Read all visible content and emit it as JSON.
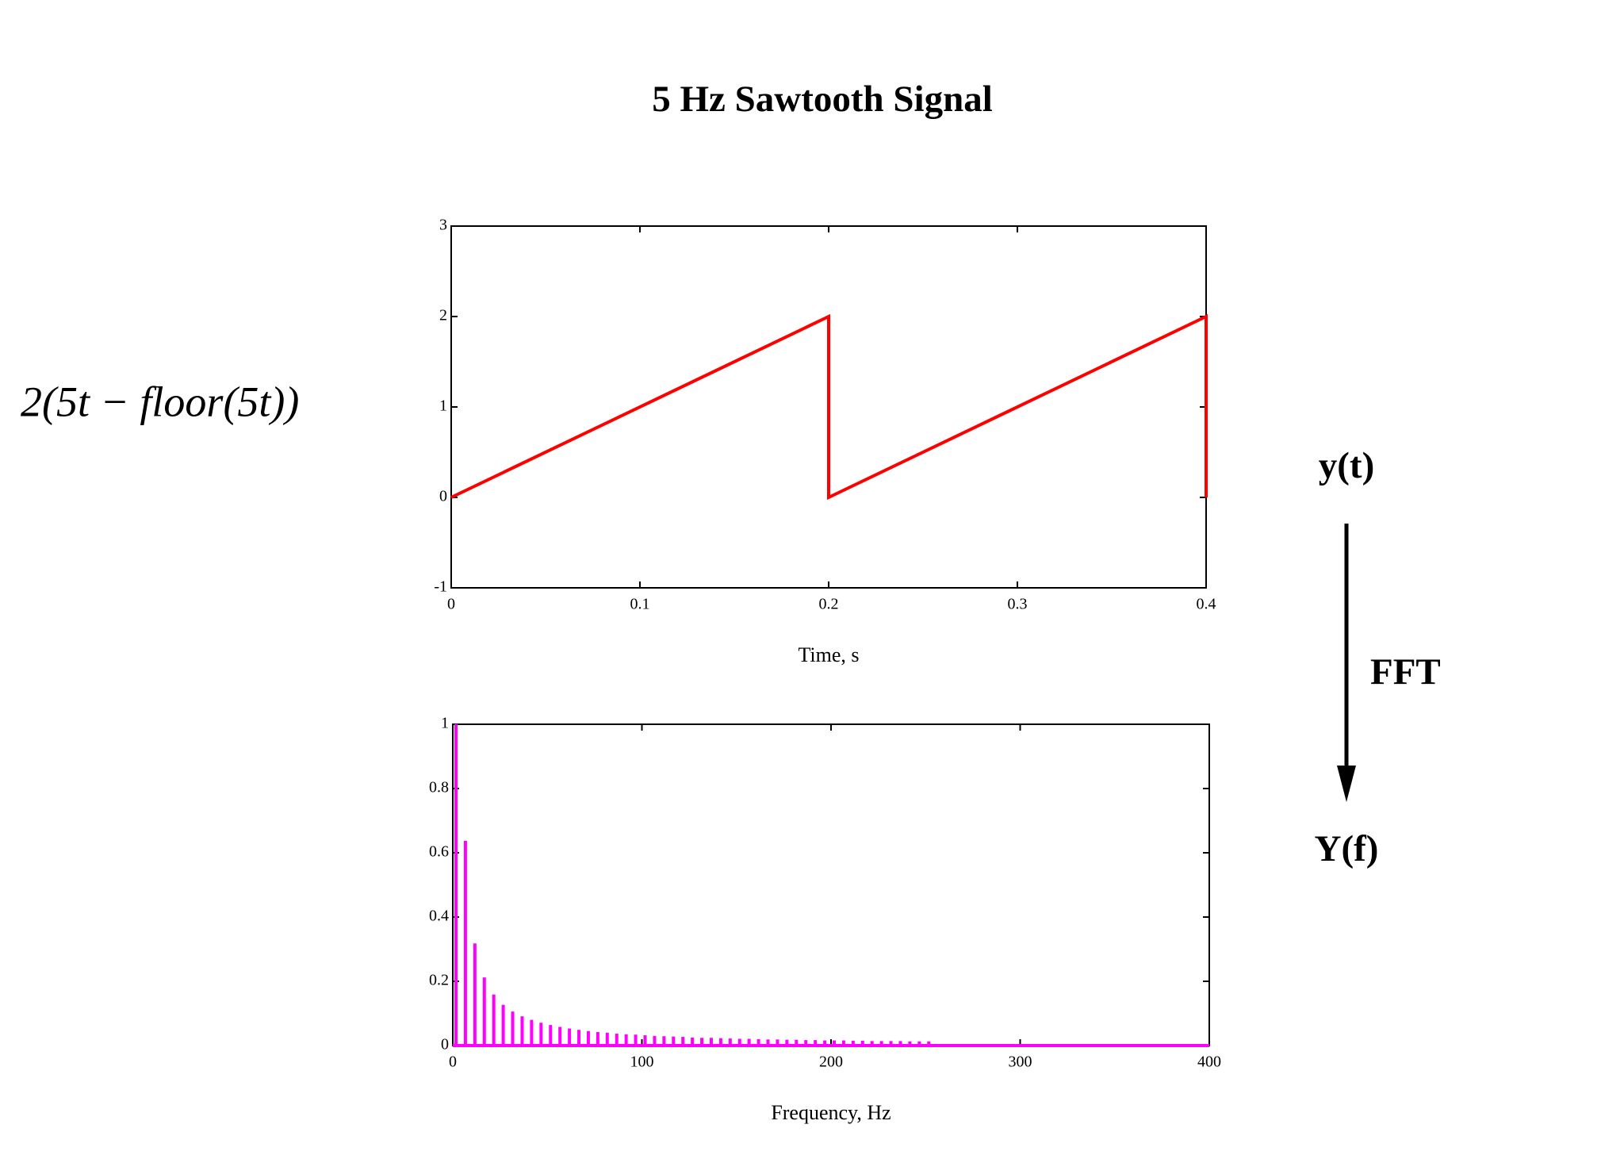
{
  "title": "5 Hz Sawtooth Signal",
  "formula": "2(5t − floor(5t))",
  "annotations": {
    "input": "y(t)",
    "transform": "FFT",
    "output": "Y(f)"
  },
  "chart_data": [
    {
      "type": "line",
      "xlabel": "Time, s",
      "color": "#ff0000",
      "x": [
        0,
        0.2,
        0.2,
        0.4,
        0.4
      ],
      "values": [
        0,
        2,
        0,
        2,
        0
      ],
      "xlim": [
        0,
        0.4
      ],
      "ylim": [
        -1,
        3
      ],
      "xticks": [
        0,
        0.1,
        0.2,
        0.3,
        0.4
      ],
      "yticks": [
        -1,
        0,
        1,
        2,
        3
      ]
    },
    {
      "type": "stem",
      "xlabel": "Frequency, Hz",
      "color": "#ff00ff",
      "x": [
        0,
        5,
        10,
        15,
        20,
        25,
        30,
        35,
        40,
        45,
        50,
        55,
        60,
        65,
        70,
        75,
        80,
        85,
        90,
        95,
        100,
        105,
        110,
        115,
        120,
        125,
        130,
        135,
        140,
        145,
        150,
        155,
        160,
        165,
        170,
        175,
        180,
        185,
        190,
        195,
        200,
        205,
        210,
        215,
        220,
        225,
        230,
        235,
        240,
        245,
        250
      ],
      "values": [
        1,
        0.637,
        0.318,
        0.212,
        0.159,
        0.127,
        0.106,
        0.091,
        0.08,
        0.071,
        0.064,
        0.058,
        0.053,
        0.049,
        0.045,
        0.042,
        0.04,
        0.037,
        0.035,
        0.034,
        0.032,
        0.03,
        0.029,
        0.028,
        0.027,
        0.025,
        0.024,
        0.024,
        0.023,
        0.022,
        0.021,
        0.021,
        0.02,
        0.019,
        0.019,
        0.018,
        0.018,
        0.017,
        0.017,
        0.016,
        0.016,
        0.016,
        0.015,
        0.015,
        0.014,
        0.014,
        0.014,
        0.014,
        0.013,
        0.013,
        0.013
      ],
      "xlim": [
        0,
        400
      ],
      "ylim": [
        0,
        1
      ],
      "xticks": [
        0,
        100,
        200,
        300,
        400
      ],
      "yticks": [
        0,
        0.2,
        0.4,
        0.6,
        0.8,
        1
      ]
    }
  ]
}
